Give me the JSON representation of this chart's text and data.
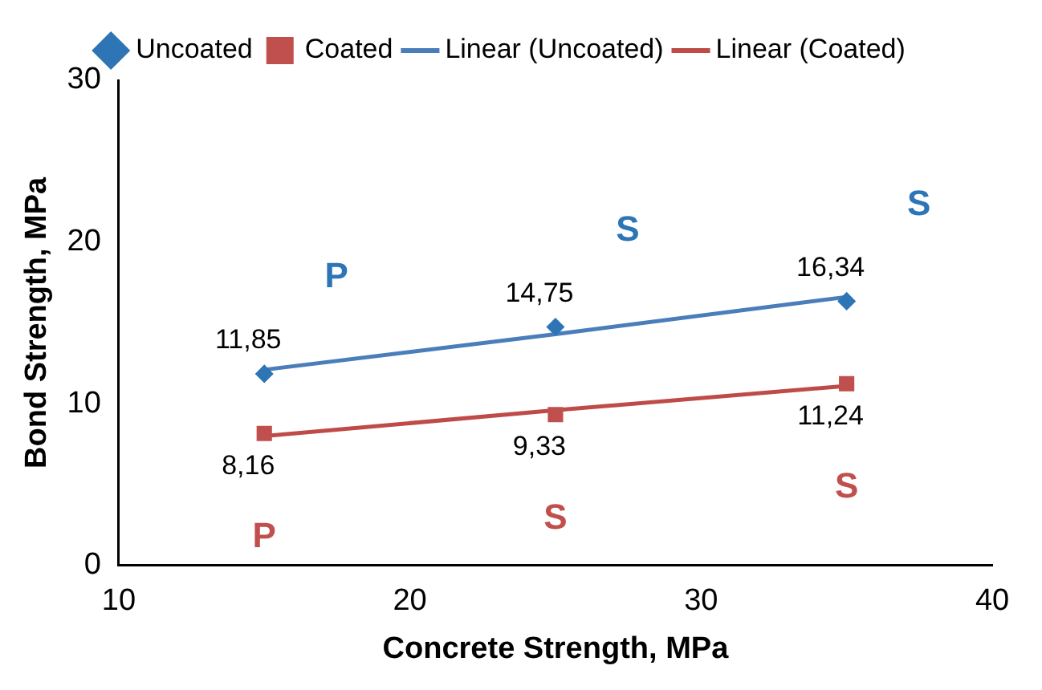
{
  "chart_data": {
    "type": "scatter",
    "xlabel": "Concrete Strength, MPa",
    "ylabel": "Bond Strength, MPa",
    "x": [
      15,
      25,
      35
    ],
    "series": [
      {
        "name": "Uncoated",
        "type": "scatter",
        "marker": "diamond",
        "color": "#2e75b6",
        "values": [
          11.85,
          14.75,
          16.34
        ],
        "value_labels": [
          "11,85",
          "14,75",
          "16,34"
        ]
      },
      {
        "name": "Coated",
        "type": "scatter",
        "marker": "square",
        "color": "#c0504d",
        "values": [
          8.16,
          9.33,
          11.24
        ],
        "value_labels": [
          "8,16",
          "9,33",
          "11,24"
        ]
      },
      {
        "name": "Linear (Uncoated)",
        "type": "line",
        "marker": "none",
        "color": "#4a7ebb",
        "values": [
          12.1,
          14.3,
          16.6
        ]
      },
      {
        "name": "Linear (Coated)",
        "type": "line",
        "marker": "none",
        "color": "#be4b48",
        "values": [
          8.0,
          9.6,
          11.1
        ]
      }
    ],
    "annotations": [
      {
        "text": "P",
        "x": 15,
        "y": 11.85
      },
      {
        "text": "S",
        "x": 25,
        "y": 14.75
      },
      {
        "text": "S",
        "x": 35,
        "y": 16.34
      },
      {
        "text": "P",
        "x": 15,
        "y": 8.16
      },
      {
        "text": "S",
        "x": 25,
        "y": 9.33
      },
      {
        "text": "S",
        "x": 35,
        "y": 11.24
      }
    ],
    "xlim": [
      10,
      40
    ],
    "xticks": [
      10,
      20,
      30,
      40
    ],
    "ylim": [
      0,
      30
    ],
    "yticks": [
      0,
      10,
      20,
      30
    ],
    "legend": "top"
  }
}
